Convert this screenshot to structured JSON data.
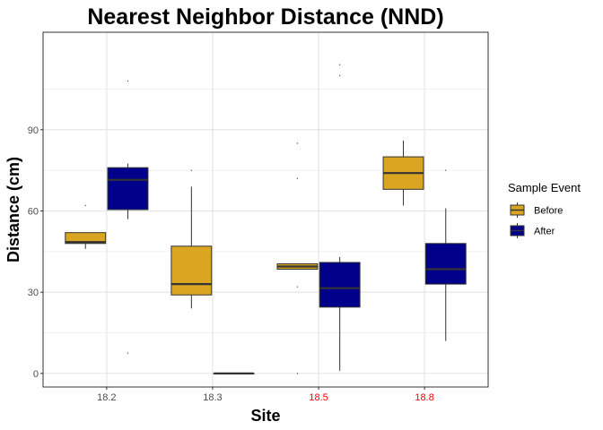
{
  "chart_data": {
    "type": "box",
    "title": "Nearest Neighbor Distance (NND)",
    "xlabel": "Site",
    "ylabel": "Distance (cm)",
    "categories": [
      "18.2",
      "18.3",
      "18.5",
      "18.8"
    ],
    "category_label_colors": [
      "#4d4d4d",
      "#4d4d4d",
      "#ff0000",
      "#ff0000"
    ],
    "ylim": [
      -5,
      126
    ],
    "yticks": [
      0,
      30,
      60,
      90
    ],
    "grid": true,
    "legend": {
      "title": "Sample Event",
      "position": "right"
    },
    "series": [
      {
        "name": "Before",
        "color": "#DAA520",
        "boxes": [
          {
            "min": 46,
            "q1": 48,
            "median": 48.5,
            "q3": 52,
            "max": 52,
            "outliers": [
              62
            ]
          },
          {
            "min": 24,
            "q1": 29,
            "median": 33,
            "q3": 47,
            "max": 69,
            "outliers": [
              75
            ]
          },
          {
            "min": 38.5,
            "q1": 38.5,
            "median": 39.5,
            "q3": 40.5,
            "max": 40.5,
            "outliers": [
              85,
              72,
              32,
              0
            ]
          },
          {
            "min": 62,
            "q1": 68,
            "median": 74,
            "q3": 80,
            "max": 86,
            "outliers": []
          }
        ]
      },
      {
        "name": "After",
        "color": "#00008B",
        "boxes": [
          {
            "min": 57,
            "q1": 60.5,
            "median": 71.5,
            "q3": 76,
            "max": 77.5,
            "outliers": [
              108,
              7.5
            ]
          },
          {
            "min": 0,
            "q1": 0,
            "median": 0,
            "q3": 0,
            "max": 0,
            "outliers": []
          },
          {
            "min": 1,
            "q1": 24.5,
            "median": 31.5,
            "q3": 41,
            "max": 43,
            "outliers": [
              114,
              110
            ]
          },
          {
            "min": 12,
            "q1": 33,
            "median": 38.5,
            "q3": 48,
            "max": 61,
            "outliers": [
              75
            ]
          }
        ]
      }
    ]
  }
}
